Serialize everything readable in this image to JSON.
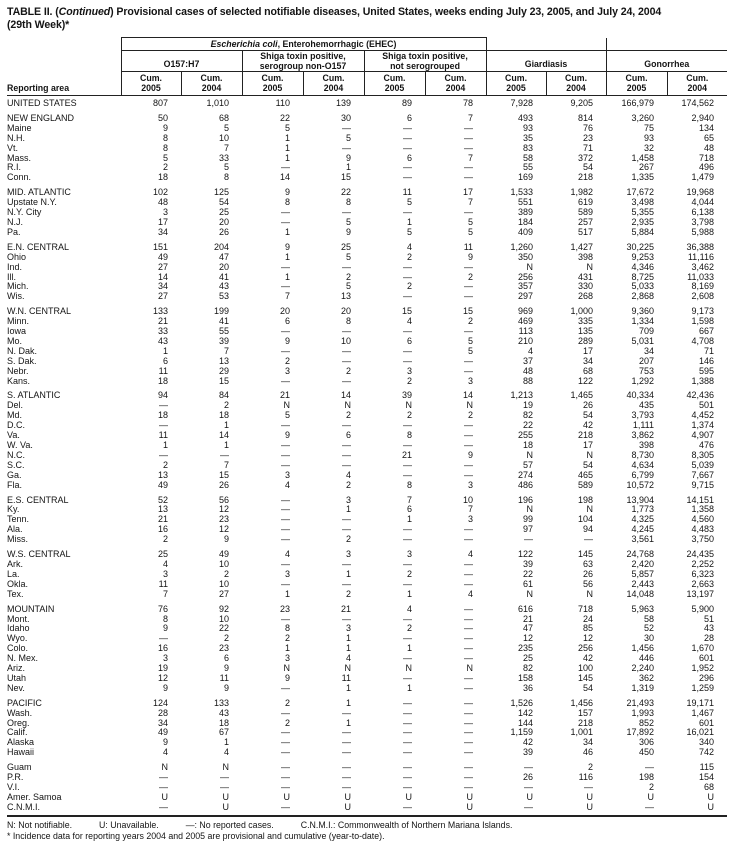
{
  "title": {
    "prefix": "TABLE II. (",
    "continued": "Continued",
    "rest": ") Provisional cases of selected notifiable diseases, United States, weeks ending July 23, 2005, and July 24, 2004",
    "line2": "(29th Week)*"
  },
  "header": {
    "reporting_area": "Reporting area",
    "ehec_italic": "Escherichia coli",
    "ehec_rest": ", Enterohemorrhagic (EHEC)",
    "o157": "O157:H7",
    "shiga_non_o157_l1": "Shiga toxin positive,",
    "shiga_non_o157_l2": "serogroup non-O157",
    "shiga_not_sero_l1": "Shiga toxin positive,",
    "shiga_not_sero_l2": "not serogrouped",
    "giardiasis": "Giardiasis",
    "gonorrhea": "Gonorrhea",
    "cum_headers": [
      {
        "l1": "Cum.",
        "l2": "2005"
      },
      {
        "l1": "Cum.",
        "l2": "2004"
      },
      {
        "l1": "Cum.",
        "l2": "2005"
      },
      {
        "l1": "Cum.",
        "l2": "2004"
      },
      {
        "l1": "Cum.",
        "l2": "2005"
      },
      {
        "l1": "Cum.",
        "l2": "2004"
      },
      {
        "l1": "Cum.",
        "l2": "2005"
      },
      {
        "l1": "Cum.",
        "l2": "2004"
      },
      {
        "l1": "Cum.",
        "l2": "2005"
      },
      {
        "l1": "Cum.",
        "l2": "2004"
      }
    ]
  },
  "rows": [
    {
      "area": "UNITED STATES",
      "first": true,
      "values": [
        "807",
        "1,010",
        "110",
        "139",
        "89",
        "78",
        "7,928",
        "9,205",
        "166,979",
        "174,562"
      ]
    },
    {
      "area": "NEW ENGLAND",
      "gap": true,
      "values": [
        "50",
        "68",
        "22",
        "30",
        "6",
        "7",
        "493",
        "814",
        "3,260",
        "2,940"
      ]
    },
    {
      "area": "Maine",
      "values": [
        "9",
        "5",
        "5",
        "—",
        "—",
        "—",
        "93",
        "76",
        "75",
        "134"
      ]
    },
    {
      "area": "N.H.",
      "values": [
        "8",
        "10",
        "1",
        "5",
        "—",
        "—",
        "35",
        "23",
        "93",
        "65"
      ]
    },
    {
      "area": "Vt.",
      "values": [
        "8",
        "7",
        "1",
        "—",
        "—",
        "—",
        "83",
        "71",
        "32",
        "48"
      ]
    },
    {
      "area": "Mass.",
      "values": [
        "5",
        "33",
        "1",
        "9",
        "6",
        "7",
        "58",
        "372",
        "1,458",
        "718"
      ]
    },
    {
      "area": "R.I.",
      "values": [
        "2",
        "5",
        "—",
        "1",
        "—",
        "—",
        "55",
        "54",
        "267",
        "496"
      ]
    },
    {
      "area": "Conn.",
      "values": [
        "18",
        "8",
        "14",
        "15",
        "—",
        "—",
        "169",
        "218",
        "1,335",
        "1,479"
      ]
    },
    {
      "area": "MID. ATLANTIC",
      "gap": true,
      "values": [
        "102",
        "125",
        "9",
        "22",
        "11",
        "17",
        "1,533",
        "1,982",
        "17,672",
        "19,968"
      ]
    },
    {
      "area": "Upstate N.Y.",
      "values": [
        "48",
        "54",
        "8",
        "8",
        "5",
        "7",
        "551",
        "619",
        "3,498",
        "4,044"
      ]
    },
    {
      "area": "N.Y. City",
      "values": [
        "3",
        "25",
        "—",
        "—",
        "—",
        "—",
        "389",
        "589",
        "5,355",
        "6,138"
      ]
    },
    {
      "area": "N.J.",
      "values": [
        "17",
        "20",
        "—",
        "5",
        "1",
        "5",
        "184",
        "257",
        "2,935",
        "3,798"
      ]
    },
    {
      "area": "Pa.",
      "values": [
        "34",
        "26",
        "1",
        "9",
        "5",
        "5",
        "409",
        "517",
        "5,884",
        "5,988"
      ]
    },
    {
      "area": "E.N. CENTRAL",
      "gap": true,
      "values": [
        "151",
        "204",
        "9",
        "25",
        "4",
        "11",
        "1,260",
        "1,427",
        "30,225",
        "36,388"
      ]
    },
    {
      "area": "Ohio",
      "values": [
        "49",
        "47",
        "1",
        "5",
        "2",
        "9",
        "350",
        "398",
        "9,253",
        "11,116"
      ]
    },
    {
      "area": "Ind.",
      "values": [
        "27",
        "20",
        "—",
        "—",
        "—",
        "—",
        "N",
        "N",
        "4,346",
        "3,462"
      ]
    },
    {
      "area": "Ill.",
      "values": [
        "14",
        "41",
        "1",
        "2",
        "—",
        "2",
        "256",
        "431",
        "8,725",
        "11,033"
      ]
    },
    {
      "area": "Mich.",
      "values": [
        "34",
        "43",
        "—",
        "5",
        "2",
        "—",
        "357",
        "330",
        "5,033",
        "8,169"
      ]
    },
    {
      "area": "Wis.",
      "values": [
        "27",
        "53",
        "7",
        "13",
        "—",
        "—",
        "297",
        "268",
        "2,868",
        "2,608"
      ]
    },
    {
      "area": "W.N. CENTRAL",
      "gap": true,
      "values": [
        "133",
        "199",
        "20",
        "20",
        "15",
        "15",
        "969",
        "1,000",
        "9,360",
        "9,173"
      ]
    },
    {
      "area": "Minn.",
      "values": [
        "21",
        "41",
        "6",
        "8",
        "4",
        "2",
        "469",
        "335",
        "1,334",
        "1,598"
      ]
    },
    {
      "area": "Iowa",
      "values": [
        "33",
        "55",
        "—",
        "—",
        "—",
        "—",
        "113",
        "135",
        "709",
        "667"
      ]
    },
    {
      "area": "Mo.",
      "values": [
        "43",
        "39",
        "9",
        "10",
        "6",
        "5",
        "210",
        "289",
        "5,031",
        "4,708"
      ]
    },
    {
      "area": "N. Dak.",
      "values": [
        "1",
        "7",
        "—",
        "—",
        "—",
        "5",
        "4",
        "17",
        "34",
        "71"
      ]
    },
    {
      "area": "S. Dak.",
      "values": [
        "6",
        "13",
        "2",
        "—",
        "—",
        "—",
        "37",
        "34",
        "207",
        "146"
      ]
    },
    {
      "area": "Nebr.",
      "values": [
        "11",
        "29",
        "3",
        "2",
        "3",
        "—",
        "48",
        "68",
        "753",
        "595"
      ]
    },
    {
      "area": "Kans.",
      "values": [
        "18",
        "15",
        "—",
        "—",
        "2",
        "3",
        "88",
        "122",
        "1,292",
        "1,388"
      ]
    },
    {
      "area": "S. ATLANTIC",
      "gap": true,
      "values": [
        "94",
        "84",
        "21",
        "14",
        "39",
        "14",
        "1,213",
        "1,465",
        "40,334",
        "42,436"
      ]
    },
    {
      "area": "Del.",
      "values": [
        "—",
        "2",
        "N",
        "N",
        "N",
        "N",
        "19",
        "26",
        "435",
        "501"
      ]
    },
    {
      "area": "Md.",
      "values": [
        "18",
        "18",
        "5",
        "2",
        "2",
        "2",
        "82",
        "54",
        "3,793",
        "4,452"
      ]
    },
    {
      "area": "D.C.",
      "values": [
        "—",
        "1",
        "—",
        "—",
        "—",
        "—",
        "22",
        "42",
        "1,111",
        "1,374"
      ]
    },
    {
      "area": "Va.",
      "values": [
        "11",
        "14",
        "9",
        "6",
        "8",
        "—",
        "255",
        "218",
        "3,862",
        "4,907"
      ]
    },
    {
      "area": "W. Va.",
      "values": [
        "1",
        "1",
        "—",
        "—",
        "—",
        "—",
        "18",
        "17",
        "398",
        "476"
      ]
    },
    {
      "area": "N.C.",
      "values": [
        "—",
        "—",
        "—",
        "—",
        "21",
        "9",
        "N",
        "N",
        "8,730",
        "8,305"
      ]
    },
    {
      "area": "S.C.",
      "values": [
        "2",
        "7",
        "—",
        "—",
        "—",
        "—",
        "57",
        "54",
        "4,634",
        "5,039"
      ]
    },
    {
      "area": "Ga.",
      "values": [
        "13",
        "15",
        "3",
        "4",
        "—",
        "—",
        "274",
        "465",
        "6,799",
        "7,667"
      ]
    },
    {
      "area": "Fla.",
      "values": [
        "49",
        "26",
        "4",
        "2",
        "8",
        "3",
        "486",
        "589",
        "10,572",
        "9,715"
      ]
    },
    {
      "area": "E.S. CENTRAL",
      "gap": true,
      "values": [
        "52",
        "56",
        "—",
        "3",
        "7",
        "10",
        "196",
        "198",
        "13,904",
        "14,151"
      ]
    },
    {
      "area": "Ky.",
      "values": [
        "13",
        "12",
        "—",
        "1",
        "6",
        "7",
        "N",
        "N",
        "1,773",
        "1,358"
      ]
    },
    {
      "area": "Tenn.",
      "values": [
        "21",
        "23",
        "—",
        "—",
        "1",
        "3",
        "99",
        "104",
        "4,325",
        "4,560"
      ]
    },
    {
      "area": "Ala.",
      "values": [
        "16",
        "12",
        "—",
        "—",
        "—",
        "—",
        "97",
        "94",
        "4,245",
        "4,483"
      ]
    },
    {
      "area": "Miss.",
      "values": [
        "2",
        "9",
        "—",
        "2",
        "—",
        "—",
        "—",
        "—",
        "3,561",
        "3,750"
      ]
    },
    {
      "area": "W.S. CENTRAL",
      "gap": true,
      "values": [
        "25",
        "49",
        "4",
        "3",
        "3",
        "4",
        "122",
        "145",
        "24,768",
        "24,435"
      ]
    },
    {
      "area": "Ark.",
      "values": [
        "4",
        "10",
        "—",
        "—",
        "—",
        "—",
        "39",
        "63",
        "2,420",
        "2,252"
      ]
    },
    {
      "area": "La.",
      "values": [
        "3",
        "2",
        "3",
        "1",
        "2",
        "—",
        "22",
        "26",
        "5,857",
        "6,323"
      ]
    },
    {
      "area": "Okla.",
      "values": [
        "11",
        "10",
        "—",
        "—",
        "—",
        "—",
        "61",
        "56",
        "2,443",
        "2,663"
      ]
    },
    {
      "area": "Tex.",
      "values": [
        "7",
        "27",
        "1",
        "2",
        "1",
        "4",
        "N",
        "N",
        "14,048",
        "13,197"
      ]
    },
    {
      "area": "MOUNTAIN",
      "gap": true,
      "values": [
        "76",
        "92",
        "23",
        "21",
        "4",
        "—",
        "616",
        "718",
        "5,963",
        "5,900"
      ]
    },
    {
      "area": "Mont.",
      "values": [
        "8",
        "10",
        "—",
        "—",
        "—",
        "—",
        "21",
        "24",
        "58",
        "51"
      ]
    },
    {
      "area": "Idaho",
      "values": [
        "9",
        "22",
        "8",
        "3",
        "2",
        "—",
        "47",
        "85",
        "52",
        "43"
      ]
    },
    {
      "area": "Wyo.",
      "values": [
        "—",
        "2",
        "2",
        "1",
        "—",
        "—",
        "12",
        "12",
        "30",
        "28"
      ]
    },
    {
      "area": "Colo.",
      "values": [
        "16",
        "23",
        "1",
        "1",
        "1",
        "—",
        "235",
        "256",
        "1,456",
        "1,670"
      ]
    },
    {
      "area": "N. Mex.",
      "values": [
        "3",
        "6",
        "3",
        "4",
        "—",
        "—",
        "25",
        "42",
        "446",
        "601"
      ]
    },
    {
      "area": "Ariz.",
      "values": [
        "19",
        "9",
        "N",
        "N",
        "N",
        "N",
        "82",
        "100",
        "2,240",
        "1,952"
      ]
    },
    {
      "area": "Utah",
      "values": [
        "12",
        "11",
        "9",
        "11",
        "—",
        "—",
        "158",
        "145",
        "362",
        "296"
      ]
    },
    {
      "area": "Nev.",
      "values": [
        "9",
        "9",
        "—",
        "1",
        "1",
        "—",
        "36",
        "54",
        "1,319",
        "1,259"
      ]
    },
    {
      "area": "PACIFIC",
      "gap": true,
      "values": [
        "124",
        "133",
        "2",
        "1",
        "—",
        "—",
        "1,526",
        "1,456",
        "21,493",
        "19,171"
      ]
    },
    {
      "area": "Wash.",
      "values": [
        "28",
        "43",
        "—",
        "—",
        "—",
        "—",
        "142",
        "157",
        "1,993",
        "1,467"
      ]
    },
    {
      "area": "Oreg.",
      "values": [
        "34",
        "18",
        "2",
        "1",
        "—",
        "—",
        "144",
        "218",
        "852",
        "601"
      ]
    },
    {
      "area": "Calif.",
      "values": [
        "49",
        "67",
        "—",
        "—",
        "—",
        "—",
        "1,159",
        "1,001",
        "17,892",
        "16,021"
      ]
    },
    {
      "area": "Alaska",
      "values": [
        "9",
        "1",
        "—",
        "—",
        "—",
        "—",
        "42",
        "34",
        "306",
        "340"
      ]
    },
    {
      "area": "Hawaii",
      "values": [
        "4",
        "4",
        "—",
        "—",
        "—",
        "—",
        "39",
        "46",
        "450",
        "742"
      ]
    },
    {
      "area": "Guam",
      "gap": true,
      "values": [
        "N",
        "N",
        "—",
        "—",
        "—",
        "—",
        "—",
        "2",
        "—",
        "115"
      ]
    },
    {
      "area": "P.R.",
      "values": [
        "—",
        "—",
        "—",
        "—",
        "—",
        "—",
        "26",
        "116",
        "198",
        "154"
      ]
    },
    {
      "area": "V.I.",
      "values": [
        "—",
        "—",
        "—",
        "—",
        "—",
        "—",
        "—",
        "—",
        "2",
        "68"
      ]
    },
    {
      "area": "Amer. Samoa",
      "values": [
        "U",
        "U",
        "U",
        "U",
        "U",
        "U",
        "U",
        "U",
        "U",
        "U"
      ]
    },
    {
      "area": "C.N.M.I.",
      "last": true,
      "values": [
        "—",
        "U",
        "—",
        "U",
        "—",
        "U",
        "—",
        "U",
        "—",
        "U"
      ]
    }
  ],
  "footnotes": {
    "legend": [
      "N: Not notifiable.",
      "U: Unavailable.",
      "—: No reported cases.",
      "C.N.M.I.: Commonwealth of Northern Mariana Islands."
    ],
    "note": "* Incidence data for reporting years 2004 and 2005 are provisional and cumulative (year-to-date)."
  }
}
